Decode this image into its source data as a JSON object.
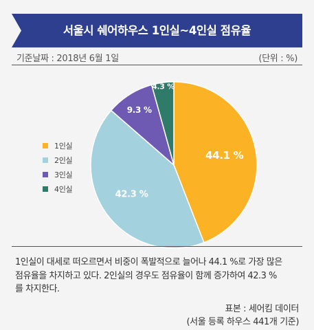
{
  "header": {
    "title": "서울시 쉐어하우스 1인실~4인실 점유율"
  },
  "meta": {
    "date_label": "기준날짜 : 2018년 6월 1일",
    "unit_label": "(단위 : %)"
  },
  "chart_data": {
    "type": "pie",
    "unit": "%",
    "legend_position": "left",
    "slices": [
      {
        "name": "1인실",
        "value": 44.1,
        "label": "44.1 %",
        "color": "#fbb225",
        "label_color": "#ffffff"
      },
      {
        "name": "2인실",
        "value": 42.3,
        "label": "42.3 %",
        "color": "#a4d1de",
        "label_color": "#ffffff"
      },
      {
        "name": "3인실",
        "value": 9.3,
        "label": "9.3 %",
        "color": "#6e5ab3",
        "label_color": "#ffffff"
      },
      {
        "name": "4인실",
        "value": 4.3,
        "label": "4.3 %",
        "color": "#2f7a69",
        "label_color": "#ffffff"
      }
    ]
  },
  "description": {
    "line1": "1인실이 대세로 떠오르면서 비중이 폭발적으로 늘어나 44.1 %로 가장 많은",
    "line2": "점유율을 차지하고 있다. 2인실의 경우도 점유율이 함께 증가하여 42.3 %",
    "line3": "를 차지한다."
  },
  "source": {
    "line1": "표본 : 세어킴 데이터",
    "line2": "(서울 등록 하우스 441개 기준)"
  }
}
